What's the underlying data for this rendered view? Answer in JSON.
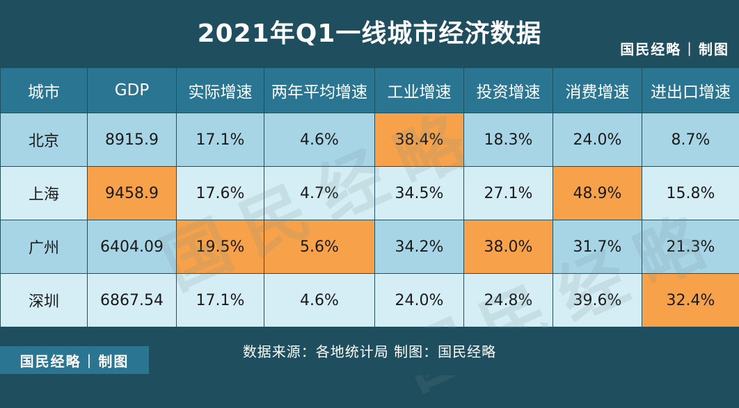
{
  "title": "2021年Q1一线城市经济数据",
  "brand": {
    "name": "国民经略",
    "separator": "|",
    "suffix": "制图"
  },
  "source": "数据来源：各地统计局 制图：国民经略",
  "watermark": "国民经略",
  "colors": {
    "background": "#1f4e5f",
    "header": "#2a7591",
    "row_dark": "#a8d5e6",
    "row_light": "#d5edf5",
    "highlight": "#f7a24a"
  },
  "chart_data": {
    "type": "table",
    "title": "2021年Q1一线城市经济数据",
    "columns": [
      "城市",
      "GDP",
      "实际增速",
      "两年平均增速",
      "工业增速",
      "投资增速",
      "消费增速",
      "进出口增速"
    ],
    "rows": [
      {
        "cells": [
          "北京",
          "8915.9",
          "17.1%",
          "4.6%",
          "38.4%",
          "18.3%",
          "24.0%",
          "8.7%"
        ],
        "highlight": [
          4
        ]
      },
      {
        "cells": [
          "上海",
          "9458.9",
          "17.6%",
          "4.7%",
          "34.5%",
          "27.1%",
          "48.9%",
          "15.8%"
        ],
        "highlight": [
          1,
          6
        ]
      },
      {
        "cells": [
          "广州",
          "6404.09",
          "19.5%",
          "5.6%",
          "34.2%",
          "38.0%",
          "31.7%",
          "21.3%"
        ],
        "highlight": [
          2,
          3,
          5
        ]
      },
      {
        "cells": [
          "深圳",
          "6867.54",
          "17.1%",
          "4.6%",
          "24.0%",
          "24.8%",
          "39.6%",
          "32.4%"
        ],
        "highlight": [
          7
        ]
      }
    ]
  }
}
